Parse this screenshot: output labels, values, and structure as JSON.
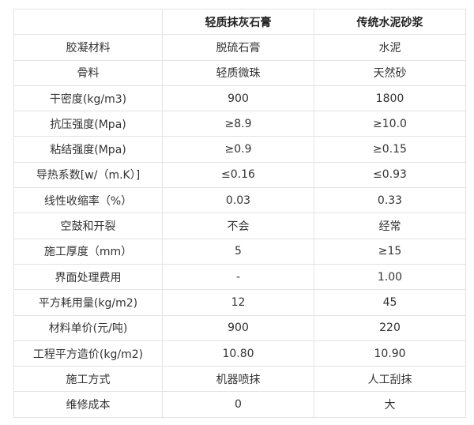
{
  "table": {
    "headers": [
      "",
      "轻质抹灰石膏",
      "传统水泥砂浆"
    ],
    "rows": [
      [
        "胶凝材料",
        "脱硫石膏",
        "水泥"
      ],
      [
        "骨料",
        "轻质微珠",
        "天然砂"
      ],
      [
        "干密度(kg/m3)",
        "900",
        "1800"
      ],
      [
        "抗压强度(Mpa)",
        "≥8.9",
        "≥10.0"
      ],
      [
        "粘结强度(Mpa)",
        "≥0.9",
        "≥0.15"
      ],
      [
        "导热系数[w/（m.K）]",
        "≤0.16",
        "≤0.93"
      ],
      [
        "线性收缩率（%）",
        "0.03",
        "0.33"
      ],
      [
        "空鼓和开裂",
        "不会",
        "经常"
      ],
      [
        "施工厚度（mm）",
        "5",
        "≥15"
      ],
      [
        "界面处理费用",
        "-",
        "1.00"
      ],
      [
        "平方耗用量(kg/m2)",
        "12",
        "45"
      ],
      [
        "材料单价(元/吨)",
        "900",
        "220"
      ],
      [
        "工程平方造价(kg/m2)",
        "10.80",
        "10.90"
      ],
      [
        "施工方式",
        "机器喷抹",
        "人工刮抹"
      ],
      [
        "维修成本",
        "0",
        "大"
      ]
    ]
  }
}
